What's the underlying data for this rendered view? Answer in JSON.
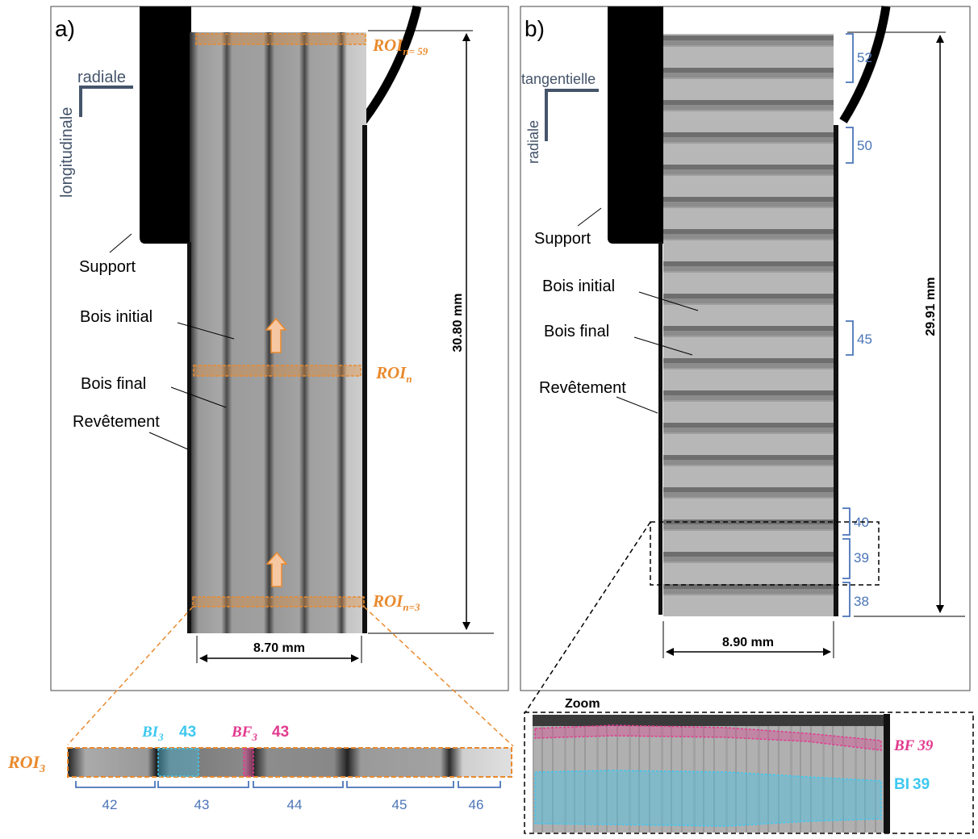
{
  "panel_a": {
    "label": "a)",
    "axes": {
      "vertical": "longitudinale",
      "horizontal": "radiale"
    },
    "labels": {
      "support": "Support",
      "bois_initial": "Bois initial",
      "bois_final": "Bois final",
      "revetement": "Revêtement"
    },
    "roi_top": {
      "main": "ROI",
      "sub": "n= 59"
    },
    "roi_mid": {
      "main": "ROI",
      "sub": "n"
    },
    "roi_bottom": {
      "main": "ROI",
      "sub": "n=3"
    },
    "height_dim": "30.80 mm",
    "width_dim": "8.70 mm"
  },
  "panel_b": {
    "label": "b)",
    "axes": {
      "vertical": "radiale",
      "horizontal": "tangentielle"
    },
    "labels": {
      "support": "Support",
      "bois_initial": "Bois initial",
      "bois_final": "Bois final",
      "revetement": "Revêtement"
    },
    "ring_numbers": [
      "52",
      "50",
      "45",
      "40",
      "39",
      "38"
    ],
    "height_dim": "29.91 mm",
    "width_dim": "8.90 mm"
  },
  "strip": {
    "roi": {
      "main": "ROI",
      "sub": "3"
    },
    "bi": {
      "main": "BI",
      "sub": "3",
      "num": "43"
    },
    "bf": {
      "main": "BF",
      "sub": "3",
      "num": "43"
    },
    "ring_numbers": [
      "42",
      "43",
      "44",
      "45",
      "46"
    ]
  },
  "zoom": {
    "title": "Zoom",
    "bf_label": {
      "main": "BF",
      "num": "39"
    },
    "bi_label": {
      "main": "BI",
      "num": "39"
    }
  },
  "colors": {
    "orange": "#e98a2e",
    "blue_label": "#4a74b8",
    "cyan": "#3ec8f0",
    "magenta": "#e23a8e",
    "axis_gray": "#44546a"
  }
}
